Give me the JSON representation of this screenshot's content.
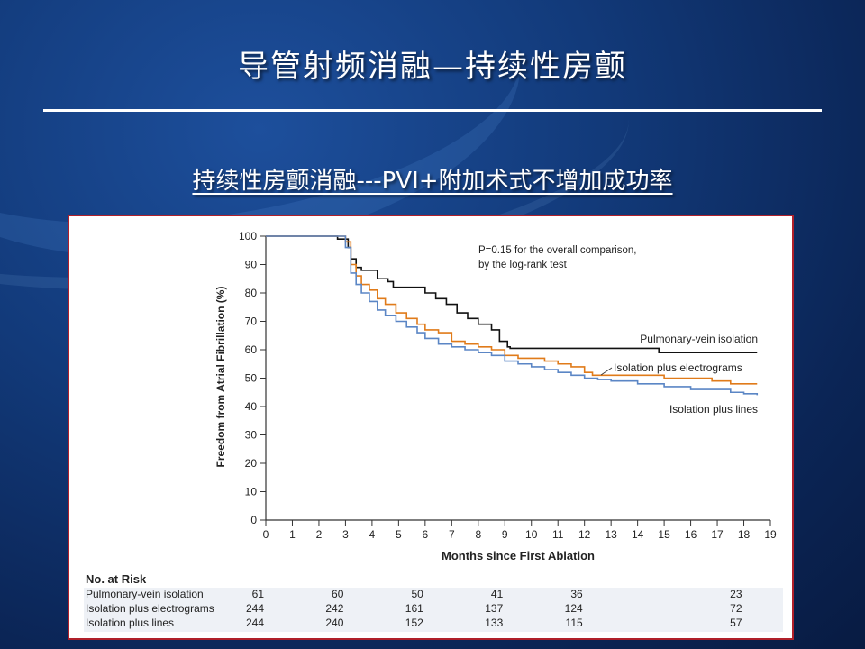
{
  "slide": {
    "title": "导管射频消融—持续性房颤",
    "subtitle": "持续性房颤消融---PVI+附加术式不增加成功率"
  },
  "chart_data": {
    "type": "line",
    "step": true,
    "ylabel": "Freedom from Atrial Fibrillation (%)",
    "xlabel": "Months since First Ablation",
    "xlim": [
      0,
      19
    ],
    "ylim": [
      0,
      100
    ],
    "xticks": [
      0,
      1,
      2,
      3,
      4,
      5,
      6,
      7,
      8,
      9,
      10,
      11,
      12,
      13,
      14,
      15,
      16,
      17,
      18,
      19
    ],
    "yticks": [
      0,
      10,
      20,
      30,
      40,
      50,
      60,
      70,
      80,
      90,
      100
    ],
    "annotation": [
      "P=0.15 for the overall comparison,",
      "by the log-rank test"
    ],
    "series": [
      {
        "name": "Pulmonary-vein isolation",
        "color": "#111111",
        "x": [
          0,
          2.6,
          2.7,
          3.1,
          3.2,
          3.4,
          3.6,
          4.2,
          4.6,
          4.8,
          5.1,
          6.0,
          6.4,
          6.8,
          7.2,
          7.6,
          8.0,
          8.5,
          8.8,
          9.1,
          9.2,
          14.8,
          18.5
        ],
        "y": [
          100,
          100,
          99,
          96,
          92,
          89,
          88,
          85,
          84,
          82,
          82,
          80,
          78,
          76,
          73,
          71,
          69,
          67,
          63,
          61,
          60.5,
          59,
          59
        ]
      },
      {
        "name": "Isolation plus electrograms",
        "color": "#e07b1a",
        "x": [
          0,
          2.8,
          3.0,
          3.2,
          3.4,
          3.6,
          3.9,
          4.2,
          4.5,
          4.9,
          5.3,
          5.7,
          6.0,
          6.5,
          7.0,
          7.5,
          8.0,
          8.5,
          9.0,
          9.5,
          10.0,
          10.5,
          11.0,
          11.5,
          12.0,
          12.3,
          13.0,
          14.0,
          15.0,
          16.0,
          16.8,
          17.5,
          18.5
        ],
        "y": [
          100,
          100,
          98,
          90,
          86,
          83,
          81,
          78,
          76,
          73,
          71,
          69,
          67,
          66,
          63,
          62,
          61,
          60,
          58,
          57,
          57,
          56,
          55,
          54,
          52,
          51,
          51,
          51,
          50,
          50,
          49,
          48,
          48
        ]
      },
      {
        "name": "Isolation plus lines",
        "color": "#5b86c5",
        "x": [
          0,
          2.8,
          3.0,
          3.2,
          3.4,
          3.6,
          3.9,
          4.2,
          4.5,
          4.9,
          5.3,
          5.7,
          6.0,
          6.5,
          7.0,
          7.5,
          8.0,
          8.5,
          9.0,
          9.5,
          10.0,
          10.5,
          11.0,
          11.5,
          12.0,
          12.5,
          13.0,
          14.0,
          15.0,
          16.0,
          17.0,
          17.5,
          18.0,
          18.5
        ],
        "y": [
          100,
          100,
          96,
          87,
          83,
          80,
          77,
          74,
          72,
          70,
          68,
          66,
          64,
          62,
          61,
          60,
          59,
          58,
          56,
          55,
          54,
          53,
          52,
          51,
          50,
          49.5,
          49,
          48,
          47,
          46,
          46,
          45,
          44.5,
          44
        ]
      }
    ],
    "risk_table": {
      "header": "No. at Risk",
      "months": [
        0,
        3,
        6,
        9,
        12,
        18
      ],
      "rows": [
        {
          "label": "Pulmonary-vein isolation",
          "values": [
            "61",
            "60",
            "50",
            "41",
            "36",
            "23"
          ]
        },
        {
          "label": "Isolation plus electrograms",
          "values": [
            "244",
            "242",
            "161",
            "137",
            "124",
            "72"
          ]
        },
        {
          "label": "Isolation plus lines",
          "values": [
            "244",
            "240",
            "152",
            "133",
            "115",
            "57"
          ]
        }
      ]
    }
  }
}
